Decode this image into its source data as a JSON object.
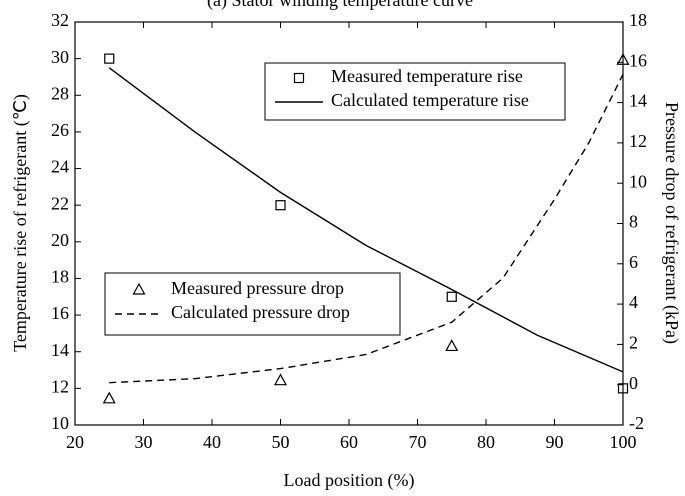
{
  "chart_data": {
    "type": "line",
    "title": "(a) Stator winding temperature curve",
    "x_label": "Load position (%)",
    "y_label": "Temperature rise of refrigerant (℃)",
    "y2_label": "Pressure drop of refrigerant (kPa)",
    "xlim": [
      20,
      100
    ],
    "xticks": [
      20,
      30,
      40,
      50,
      60,
      70,
      80,
      90,
      100
    ],
    "ylim": [
      10,
      32
    ],
    "yticks": [
      10,
      12,
      14,
      16,
      18,
      20,
      22,
      24,
      26,
      28,
      30,
      32
    ],
    "y2lim": [
      -2,
      18
    ],
    "y2ticks": [
      -2,
      0,
      2,
      4,
      6,
      8,
      10,
      12,
      14,
      16,
      18
    ],
    "series": [
      {
        "name": "Measured temperature rise",
        "style": "square",
        "color": "#000000",
        "axis": "y",
        "x": [
          25,
          50,
          75,
          100
        ],
        "values": [
          30,
          22,
          17,
          12
        ]
      },
      {
        "name": "Calculated temperature rise",
        "style": "solid",
        "color": "#000000",
        "axis": "y",
        "x": [
          25,
          37.5,
          50,
          62.5,
          75,
          87.5,
          100
        ],
        "values": [
          29.5,
          26,
          22.7,
          19.8,
          17.4,
          14.9,
          12.9
        ]
      },
      {
        "name": "Measured pressure drop",
        "style": "triangle",
        "color": "#000000",
        "axis": "y2",
        "x": [
          25,
          50,
          75,
          100
        ],
        "values": [
          -0.7,
          0.2,
          1.9,
          16.1
        ]
      },
      {
        "name": "Calculated pressure drop",
        "style": "dashed",
        "color": "#000000",
        "axis": "y2",
        "x": [
          25,
          37.5,
          50,
          62.5,
          75,
          82.5,
          90,
          95,
          100
        ],
        "values": [
          0.1,
          0.3,
          0.8,
          1.5,
          3.1,
          5.3,
          9.2,
          12.0,
          15.4
        ]
      }
    ]
  }
}
